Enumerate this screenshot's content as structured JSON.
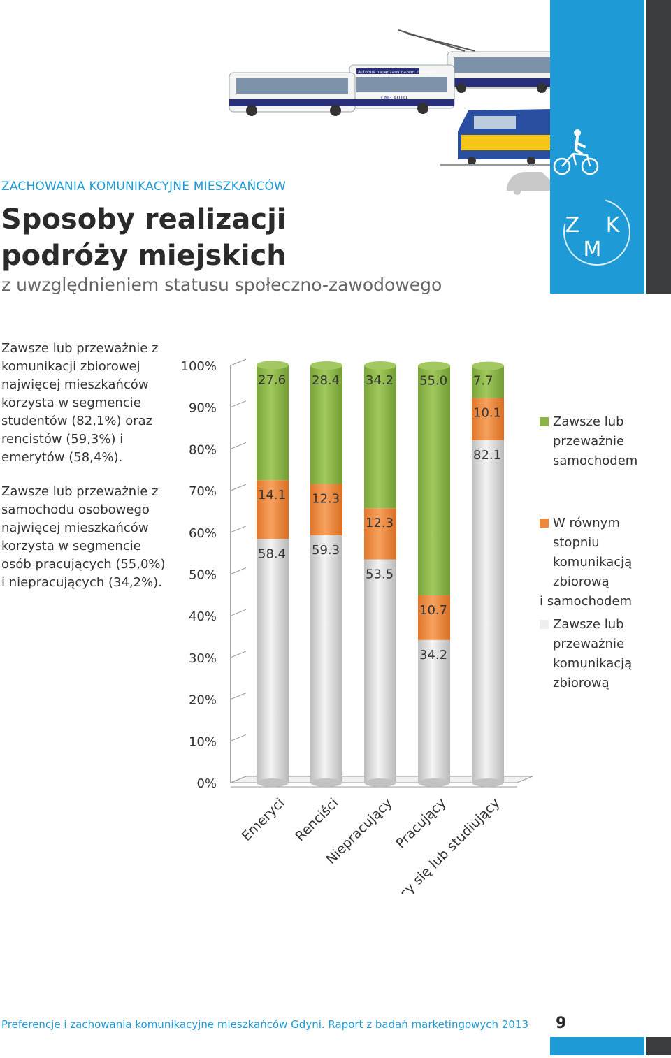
{
  "header": {
    "kicker": "ZACHOWANIA KOMUNIKACYJNE MIESZKAŃCÓW",
    "title_line1": "Sposoby realizacji",
    "title_line2": "podróży miejskich",
    "subtitle": "z uwzględnieniem statusu społeczno-zawodowego",
    "logo": "Z K M",
    "bus_banner": "Autobus napędzany gazem ziemnym",
    "bus_brand": "CNG AUTO"
  },
  "text": {
    "para1": "Zawsze lub przeważnie z komunikacji zbiorowej najwięcej mieszkańców korzysta w segmencie studentów (82,1%) oraz rencistów (59,3%) i emerytów (58,4%).",
    "para2": "Zawsze lub przeważnie z samochodu osobowego najwięcej mieszkańców korzysta w segmencie osób pracujących (55,0%) i niepracujących (34,2%)."
  },
  "chart_data": {
    "type": "bar",
    "stacked": true,
    "three_d": true,
    "categories": [
      "Emeryci",
      "Renciści",
      "Niepracujący",
      "Pracujący",
      "Uczący się lub studiujący"
    ],
    "series": [
      {
        "name": "Zawsze lub przeważnie komunikacją zbiorową",
        "color": "#d9d9d9",
        "values": [
          58.4,
          59.3,
          53.5,
          34.2,
          82.1
        ]
      },
      {
        "name": "W równym stopniu komunikacją zbiorową i samochodem",
        "color": "#f0883c",
        "values": [
          14.1,
          12.3,
          12.3,
          10.7,
          10.1
        ]
      },
      {
        "name": "Zawsze lub przeważnie samochodem",
        "color": "#8ab446",
        "values": [
          27.6,
          28.4,
          34.2,
          55.0,
          7.7
        ]
      }
    ],
    "data_labels": [
      [
        "58.4",
        "59.3",
        "53.5",
        "34.2",
        "82.1"
      ],
      [
        "14.1",
        "12.3",
        "12.3",
        "10.7",
        "10.1"
      ],
      [
        "27.6",
        "28.4",
        "34.2",
        "55.0",
        "7.7"
      ]
    ],
    "y_ticks": [
      "0%",
      "10%",
      "20%",
      "30%",
      "40%",
      "50%",
      "60%",
      "70%",
      "80%",
      "90%",
      "100%"
    ],
    "ylim": [
      0,
      100
    ],
    "legend_position": "right",
    "grid": false
  },
  "legend": {
    "car": "Zawsze lub przeważnie samochodem",
    "both_l1": "W równym stopniu komunikacją zbiorową",
    "both_l2": "i samochodem",
    "pt": "Zawsze lub przeważnie komunikacją zbiorową"
  },
  "footer": {
    "text": "Preferencje i zachowania komunikacyjne mieszkańców Gdyni. Raport z badań marketingowych 2013",
    "page": "9"
  },
  "colors": {
    "brand": "#1e9ad6",
    "dark": "#3a3d40"
  }
}
